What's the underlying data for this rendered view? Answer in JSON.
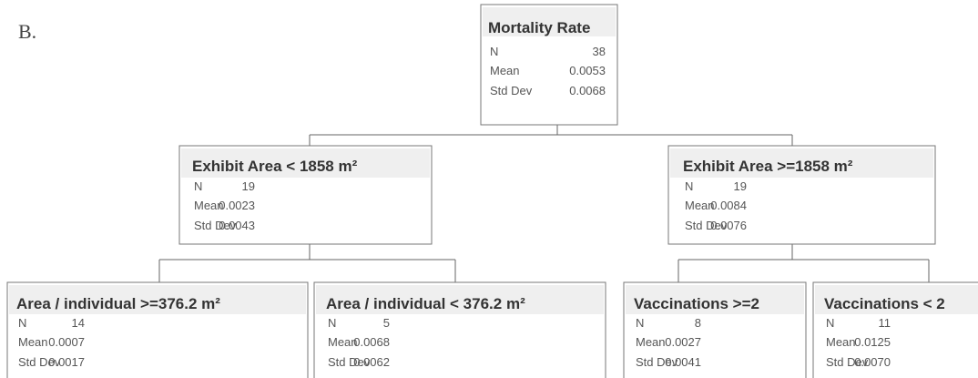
{
  "panel_label": "B.",
  "stat_labels": [
    "N",
    "Mean",
    "Std Dev"
  ],
  "nodes": [
    {
      "title": "Mortality Rate",
      "stats": [
        "38",
        "0.0053",
        "0.0068"
      ]
    },
    {
      "title": "Exhibit Area < 1858 m²",
      "stats": [
        "19",
        "0.0023",
        "0.0043"
      ]
    },
    {
      "title": "Exhibit Area >=1858 m²",
      "stats": [
        "19",
        "0.0084",
        "0.0076"
      ]
    },
    {
      "title": "Area / individual >=376.2 m²",
      "stats": [
        "14",
        "0.0007",
        "0.0017"
      ]
    },
    {
      "title": "Area / individual < 376.2 m²",
      "stats": [
        "5",
        "0.0068",
        "0.0062"
      ]
    },
    {
      "title": "Vaccinations >=2",
      "stats": [
        "8",
        "0.0027",
        "0.0041"
      ]
    },
    {
      "title": "Vaccinations < 2",
      "stats": [
        "11",
        "0.0125",
        "0.0070"
      ]
    }
  ]
}
